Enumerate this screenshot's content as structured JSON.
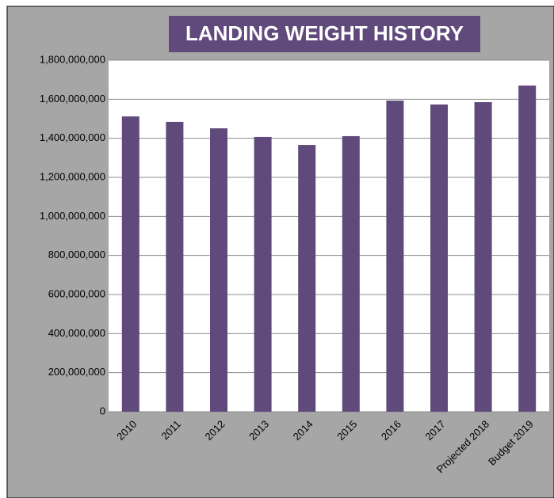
{
  "chart_data": {
    "type": "bar",
    "title": "LANDING WEIGHT HISTORY",
    "categories": [
      "2010",
      "2011",
      "2012",
      "2013",
      "2014",
      "2015",
      "2016",
      "2017",
      "Projected 2018",
      "Budget 2019"
    ],
    "values": [
      1512000000,
      1484000000,
      1451000000,
      1407000000,
      1366000000,
      1411000000,
      1593000000,
      1573000000,
      1585000000,
      1670000000
    ],
    "color": "#604a7b",
    "ylim": [
      0,
      1800000000
    ],
    "yticks": [
      0,
      {
        "value": 200000000,
        "label": "200,000,000"
      },
      {
        "value": 400000000,
        "label": "400,000,000"
      },
      {
        "value": 600000000,
        "label": "600,000,000"
      },
      {
        "value": 800000000,
        "label": "800,000,000"
      },
      {
        "value": 1000000000,
        "label": "1,000,000,000"
      },
      {
        "value": 1200000000,
        "label": "1,200,000,000"
      },
      {
        "value": 1400000000,
        "label": "1,400,000,000"
      },
      {
        "value": 1600000000,
        "label": "1,600,000,000"
      },
      {
        "value": 1800000000,
        "label": "1,800,000,000"
      }
    ],
    "grid": true
  }
}
